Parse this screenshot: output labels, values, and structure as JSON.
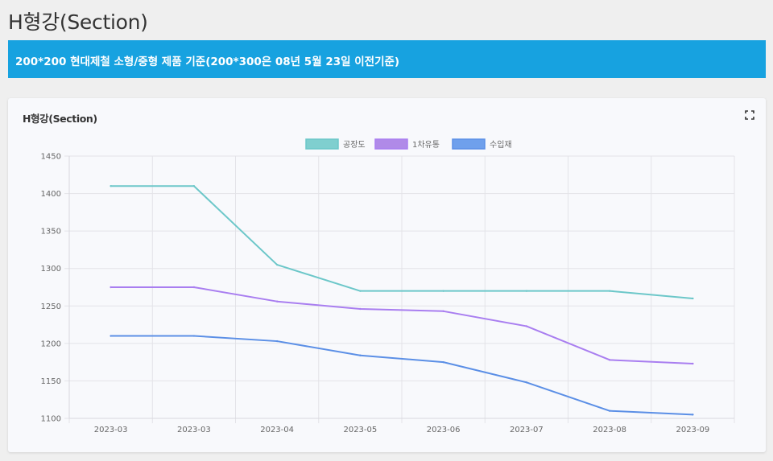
{
  "page": {
    "title": "H형강(Section)",
    "notice": "200*200 현대제철 소형/중형 제품 기준(200*300은 08년 5월 23일 이전기준)"
  },
  "card": {
    "title": "H형강(Section)",
    "expand_icon": "fullscreen-icon"
  },
  "chart_data": {
    "type": "line",
    "title": "H형강(Section)",
    "categories": [
      "2023-03",
      "2023-03",
      "2023-04",
      "2023-05",
      "2023-06",
      "2023-07",
      "2023-08",
      "2023-09"
    ],
    "series": [
      {
        "name": "공장도",
        "color": "#6cc7c9",
        "fill": "#7fcfcf",
        "values": [
          1410,
          1410,
          1305,
          1270,
          1270,
          1270,
          1270,
          1260
        ]
      },
      {
        "name": "1차유통",
        "color": "#a97ef0",
        "fill": "#b08ae8",
        "values": [
          1275,
          1275,
          1256,
          1246,
          1243,
          1223,
          1178,
          1173
        ]
      },
      {
        "name": "수입재",
        "color": "#5b8fe6",
        "fill": "#6fa0ec",
        "values": [
          1210,
          1210,
          1203,
          1184,
          1175,
          1148,
          1110,
          1105
        ]
      }
    ],
    "yticks": [
      1100,
      1150,
      1200,
      1250,
      1300,
      1350,
      1400,
      1450
    ],
    "ylim": [
      1100,
      1450
    ],
    "xlabel": "",
    "ylabel": "",
    "grid": true,
    "legend": "top-center"
  }
}
